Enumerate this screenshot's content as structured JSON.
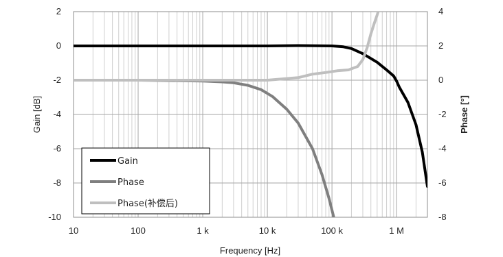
{
  "chart_data": {
    "type": "line",
    "xlabel": "Frequency [Hz]",
    "ylabel_left": "Gain [dB]",
    "ylabel_right": "Phase [°]",
    "x_scale": "log",
    "xlim": [
      10,
      3000000
    ],
    "ylim_left": [
      -10,
      2
    ],
    "ylim_right": [
      -8,
      4
    ],
    "x_ticks": [
      {
        "value": 10,
        "label": "10"
      },
      {
        "value": 100,
        "label": "100"
      },
      {
        "value": 1000,
        "label": "1 k"
      },
      {
        "value": 10000,
        "label": "10 k"
      },
      {
        "value": 100000,
        "label": "100 k"
      },
      {
        "value": 1000000,
        "label": "1 M"
      }
    ],
    "y_ticks_left": [
      {
        "value": 2,
        "label": "2"
      },
      {
        "value": 0,
        "label": "0"
      },
      {
        "value": -2,
        "label": "-2"
      },
      {
        "value": -4,
        "label": "-4"
      },
      {
        "value": -6,
        "label": "-6"
      },
      {
        "value": -8,
        "label": "-8"
      },
      {
        "value": -10,
        "label": "-10"
      }
    ],
    "y_ticks_right": [
      {
        "value": 4,
        "label": "4"
      },
      {
        "value": 2,
        "label": "2"
      },
      {
        "value": 0,
        "label": "0"
      },
      {
        "value": -2,
        "label": "-2"
      },
      {
        "value": -4,
        "label": "-4"
      },
      {
        "value": -6,
        "label": "-6"
      },
      {
        "value": -8,
        "label": "-8"
      }
    ],
    "grid": true,
    "legend_placement": "bottom-left",
    "series": [
      {
        "name": "Gain",
        "axis": "left",
        "color": "#000000",
        "x": [
          10,
          100,
          1000,
          10000,
          30000,
          100000,
          150000,
          200000,
          300000,
          500000,
          700000,
          900000,
          1000000,
          1100000,
          1500000,
          2000000,
          2500000,
          3000000
        ],
        "y": [
          0,
          0,
          0,
          0,
          0.02,
          0,
          -0.05,
          -0.15,
          -0.45,
          -0.95,
          -1.4,
          -1.75,
          -2.05,
          -2.4,
          -3.3,
          -4.6,
          -6.2,
          -8.2
        ]
      },
      {
        "name": "Phase",
        "axis": "right",
        "color": "#7f7f7f",
        "x": [
          10,
          100,
          1000,
          2000,
          3000,
          5000,
          8000,
          12000,
          20000,
          30000,
          50000,
          70000,
          90000,
          105000,
          120000
        ],
        "y": [
          0,
          0,
          -0.05,
          -0.1,
          -0.15,
          -0.3,
          -0.55,
          -0.95,
          -1.7,
          -2.5,
          -4.0,
          -5.5,
          -6.9,
          -7.9,
          -8.9
        ]
      },
      {
        "name": "Phase(补偿后)",
        "axis": "right",
        "color": "#bfbfbf",
        "x": [
          10,
          100,
          1000,
          10000,
          30000,
          50000,
          80000,
          120000,
          180000,
          250000,
          300000,
          350000,
          400000,
          450000,
          500000,
          540000
        ],
        "y": [
          0,
          0,
          0,
          0,
          0.15,
          0.35,
          0.45,
          0.55,
          0.6,
          0.8,
          1.2,
          1.9,
          2.7,
          3.3,
          3.8,
          4.2
        ]
      }
    ]
  }
}
